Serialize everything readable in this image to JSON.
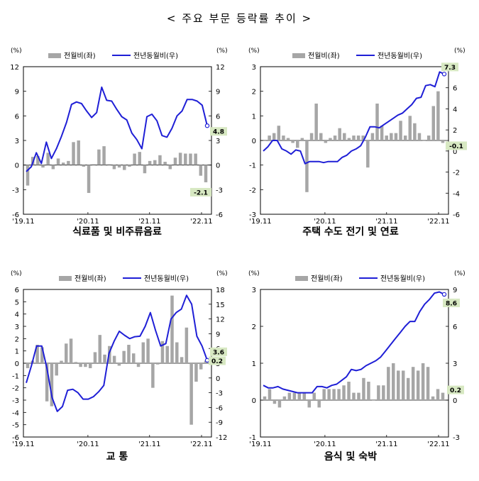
{
  "page_title": "< 주요 부문 등락률 추이 >",
  "colors": {
    "bar": "#a6a6a6",
    "line": "#1f1fd6",
    "label_bg": "#d7e8c2"
  },
  "chart_data": [
    {
      "type": "bar",
      "title": "식료품 및 비주류음료",
      "unit_left": "(%)",
      "unit_right": "(%)",
      "legend": [
        "전월비(좌)",
        "전년동월비(우)"
      ],
      "x_ticks": [
        "'19.11",
        "'20.11",
        "'21.11",
        "'22.11"
      ],
      "yleft": {
        "min": -6,
        "max": 12,
        "step": 3,
        "ticks": [
          "12",
          "9",
          "6",
          "3",
          "0",
          "-3",
          "-6"
        ]
      },
      "yright": {
        "min": -6,
        "max": 12,
        "step": 3,
        "ticks": [
          "12",
          "9",
          "6",
          "3",
          "0",
          "-3",
          "-6"
        ]
      },
      "series": [
        {
          "name": "전월비(좌)",
          "axis": "left",
          "values": [
            -2.5,
            1.0,
            1.1,
            -0.3,
            1.5,
            -0.5,
            0.8,
            0.3,
            0.5,
            2.8,
            3.0,
            -0.2,
            -3.4,
            0.1,
            1.9,
            2.3,
            0.1,
            -0.5,
            -0.3,
            -0.6,
            -0.2,
            1.4,
            1.6,
            -1.0,
            0.5,
            0.6,
            1.2,
            0.4,
            -0.5,
            0.9,
            1.5,
            1.4,
            1.4,
            1.4,
            -1.3,
            -2.1
          ]
        },
        {
          "name": "전년동월비(우)",
          "axis": "right",
          "values": [
            -0.8,
            -0.2,
            1.5,
            0.2,
            2.8,
            0.8,
            2.0,
            3.5,
            5.2,
            7.4,
            7.7,
            7.5,
            6.6,
            5.8,
            6.4,
            9.5,
            7.9,
            7.8,
            6.8,
            5.9,
            5.5,
            3.9,
            3.1,
            2.0,
            5.9,
            6.2,
            5.4,
            3.6,
            3.4,
            4.5,
            6.0,
            6.6,
            8.0,
            8.0,
            7.8,
            7.3,
            4.8
          ]
        }
      ],
      "labels": {
        "mom_last": "-2.1",
        "yoy_last": "4.8"
      }
    },
    {
      "type": "bar",
      "title": "주택 수도 전기 및 연료",
      "unit_left": "(%)",
      "unit_right": "(%)",
      "legend": [
        "전월비(좌)",
        "전년동월비(우)"
      ],
      "x_ticks": [
        "'19.11",
        "'20.11",
        "'21.11",
        "'22.11"
      ],
      "yleft": {
        "min": -3,
        "max": 3,
        "step": 1,
        "ticks": [
          "3",
          "2",
          "1",
          "0",
          "-1",
          "-2",
          "-3"
        ]
      },
      "yright": {
        "min": -6,
        "max": 8,
        "step": 2,
        "ticks": [
          "8",
          "6",
          "4",
          "2",
          "0",
          "-2",
          "-4",
          "-6"
        ]
      },
      "series": [
        {
          "name": "전월비(좌)",
          "axis": "left",
          "values": [
            0.0,
            0.2,
            0.3,
            0.6,
            0.2,
            0.1,
            -0.1,
            -0.3,
            0.1,
            -2.1,
            0.3,
            1.5,
            0.3,
            -0.1,
            0.1,
            0.2,
            0.5,
            0.3,
            0.1,
            0.2,
            0.2,
            0.2,
            -1.1,
            0.3,
            1.5,
            0.6,
            0.2,
            0.3,
            0.3,
            0.8,
            0.2,
            1.0,
            0.7,
            0.3,
            0.0,
            0.2,
            1.4,
            2.0,
            -0.1
          ]
        },
        {
          "name": "전년동월비(우)",
          "axis": "right",
          "values": [
            0.0,
            0.4,
            1.0,
            1.0,
            0.2,
            0.0,
            -0.3,
            0.1,
            0.0,
            -1.2,
            -1.0,
            -1.0,
            -1.0,
            -1.1,
            -1.0,
            -1.0,
            -1.0,
            -0.6,
            -0.4,
            0.0,
            0.2,
            0.5,
            1.3,
            2.3,
            2.3,
            2.2,
            2.5,
            2.8,
            3.1,
            3.4,
            3.6,
            4.0,
            4.4,
            5.0,
            5.1,
            6.2,
            6.3,
            6.1,
            7.5,
            7.3
          ]
        }
      ],
      "labels": {
        "mom_last": "-0.1",
        "yoy_last": "7.3"
      }
    },
    {
      "type": "bar",
      "title": "교         통",
      "unit_left": "(%)",
      "unit_right": "(%)",
      "legend": [
        "전월비(좌)",
        "전년동월비(우)"
      ],
      "x_ticks": [
        "'19.11",
        "'20.11",
        "'21.11",
        "'22.11"
      ],
      "yleft": {
        "min": -6,
        "max": 6,
        "step": 1,
        "ticks": [
          "6",
          "5",
          "4",
          "3",
          "2",
          "1",
          "0",
          "-1",
          "-2",
          "-3",
          "-4",
          "-5",
          "-6"
        ]
      },
      "yright": {
        "min": -12,
        "max": 18,
        "step": 3,
        "ticks": [
          "18",
          "15",
          "12",
          "9",
          "6",
          "3",
          "0",
          "-3",
          "-6",
          "-9",
          "-12"
        ]
      },
      "series": [
        {
          "name": "전월비(좌)",
          "axis": "left",
          "values": [
            -0.4,
            0.2,
            1.5,
            1.3,
            -3.1,
            -3.5,
            -1.0,
            0.2,
            1.6,
            2.0,
            0.1,
            -0.3,
            -0.3,
            -0.4,
            0.9,
            2.3,
            0.7,
            1.4,
            0.6,
            -0.2,
            1.0,
            1.5,
            0.8,
            -0.3,
            1.7,
            2.0,
            -2.0,
            -0.1,
            1.8,
            1.4,
            5.5,
            1.7,
            0.5,
            2.9,
            -5.0,
            -1.5,
            -0.5,
            0.2
          ]
        },
        {
          "name": "전년동월비(우)",
          "axis": "right",
          "values": [
            -1.0,
            2.5,
            6.5,
            6.5,
            2.0,
            -4.0,
            -6.8,
            -5.8,
            -2.5,
            -2.3,
            -3.0,
            -4.3,
            -4.3,
            -3.8,
            -2.8,
            -1.5,
            5.0,
            7.5,
            9.5,
            8.7,
            8.0,
            8.4,
            8.5,
            10.5,
            13.3,
            9.7,
            6.5,
            7.0,
            12.0,
            13.3,
            14.0,
            16.8,
            15.0,
            8.5,
            6.5,
            3.6
          ]
        }
      ],
      "labels": {
        "mom_last": "0.2",
        "yoy_last": "3.6"
      }
    },
    {
      "type": "bar",
      "title": "음식 및 숙박",
      "unit_left": "(%)",
      "unit_right": "(%)",
      "legend": [
        "전월비(좌)",
        "전년동월비(우)"
      ],
      "x_ticks": [
        "'19.11",
        "'20.11",
        "'21.11",
        "'22.11"
      ],
      "yleft": {
        "min": -1,
        "max": 3,
        "step": 1,
        "ticks": [
          "3",
          "2",
          "1",
          "0",
          "-1"
        ]
      },
      "yright": {
        "min": -3,
        "max": 9,
        "step": 3,
        "ticks": [
          "9",
          "6",
          "3",
          "0",
          "-3"
        ]
      },
      "series": [
        {
          "name": "전월비(좌)",
          "axis": "left",
          "values": [
            0.1,
            0.3,
            -0.1,
            -0.2,
            0.1,
            0.2,
            0.2,
            0.2,
            0.2,
            -0.2,
            0.2,
            -0.2,
            0.3,
            0.3,
            0.3,
            0.3,
            0.4,
            0.5,
            0.2,
            0.2,
            0.6,
            0.5,
            0.0,
            0.4,
            0.4,
            0.9,
            1.0,
            0.8,
            0.8,
            0.6,
            0.9,
            0.8,
            1.0,
            0.9,
            0.1,
            0.3,
            0.2
          ]
        },
        {
          "name": "전년동월비(우)",
          "axis": "right",
          "values": [
            1.2,
            1.0,
            1.0,
            1.1,
            0.9,
            0.8,
            0.7,
            0.6,
            0.6,
            0.6,
            0.6,
            1.1,
            1.1,
            1.0,
            1.2,
            1.3,
            1.6,
            1.9,
            2.5,
            2.4,
            2.5,
            2.8,
            3.0,
            3.2,
            3.5,
            4.0,
            4.5,
            5.0,
            5.5,
            6.0,
            6.4,
            6.4,
            7.2,
            7.8,
            8.2,
            8.7,
            8.8,
            8.6
          ]
        }
      ],
      "labels": {
        "mom_last": "0.2",
        "yoy_last": "8.6"
      }
    }
  ]
}
